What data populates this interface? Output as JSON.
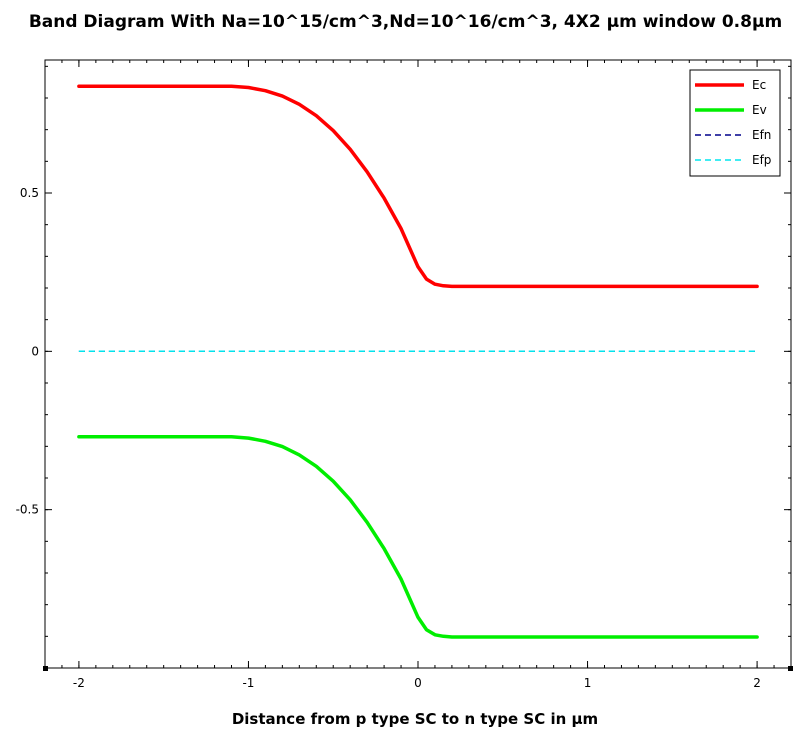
{
  "chart_data": {
    "type": "line",
    "title": "Band Diagram With Na=10^15/cm^3,Nd=10^16/cm^3, 4X2 μm window 0.8μm",
    "xlabel": "Distance from p type SC to n type SC in μm",
    "ylabel": "",
    "xlim": [
      -2.2,
      2.2
    ],
    "ylim": [
      -1.0,
      0.92
    ],
    "xticks": [
      -2,
      -1,
      0,
      1,
      2
    ],
    "xtick_labels": [
      "-2",
      "-1",
      "0",
      "1",
      "2"
    ],
    "yticks": [
      -0.5,
      0,
      0.5
    ],
    "ytick_labels": [
      "-0.5",
      "0",
      "0.5"
    ],
    "grid": false,
    "legend_position": "top-right",
    "series": [
      {
        "name": "Ec",
        "color": "#ff0000",
        "style": "solid",
        "x": [
          -2,
          -1.5,
          -1.1,
          -1.0,
          -0.9,
          -0.8,
          -0.7,
          -0.6,
          -0.5,
          -0.4,
          -0.3,
          -0.2,
          -0.1,
          0,
          0.05,
          0.1,
          0.15,
          0.2,
          0.5,
          1,
          1.5,
          2
        ],
        "y": [
          0.837,
          0.837,
          0.837,
          0.833,
          0.823,
          0.806,
          0.78,
          0.744,
          0.697,
          0.638,
          0.567,
          0.484,
          0.388,
          0.267,
          0.228,
          0.212,
          0.207,
          0.205,
          0.205,
          0.205,
          0.205,
          0.205
        ]
      },
      {
        "name": "Ev",
        "color": "#00ee00",
        "style": "solid",
        "x": [
          -2,
          -1.5,
          -1.1,
          -1.0,
          -0.9,
          -0.8,
          -0.7,
          -0.6,
          -0.5,
          -0.4,
          -0.3,
          -0.2,
          -0.1,
          0,
          0.05,
          0.1,
          0.15,
          0.2,
          0.5,
          1,
          1.5,
          2
        ],
        "y": [
          -0.27,
          -0.27,
          -0.27,
          -0.274,
          -0.284,
          -0.301,
          -0.327,
          -0.363,
          -0.41,
          -0.469,
          -0.54,
          -0.623,
          -0.719,
          -0.84,
          -0.879,
          -0.895,
          -0.9,
          -0.902,
          -0.902,
          -0.902,
          -0.902,
          -0.902
        ]
      },
      {
        "name": "Efn",
        "color": "#00008b",
        "style": "dashed",
        "x": [
          -2,
          2
        ],
        "y": [
          0,
          0
        ]
      },
      {
        "name": "Efp",
        "color": "#00e5ee",
        "style": "dashed",
        "x": [
          -2,
          2
        ],
        "y": [
          0,
          0
        ]
      }
    ]
  }
}
